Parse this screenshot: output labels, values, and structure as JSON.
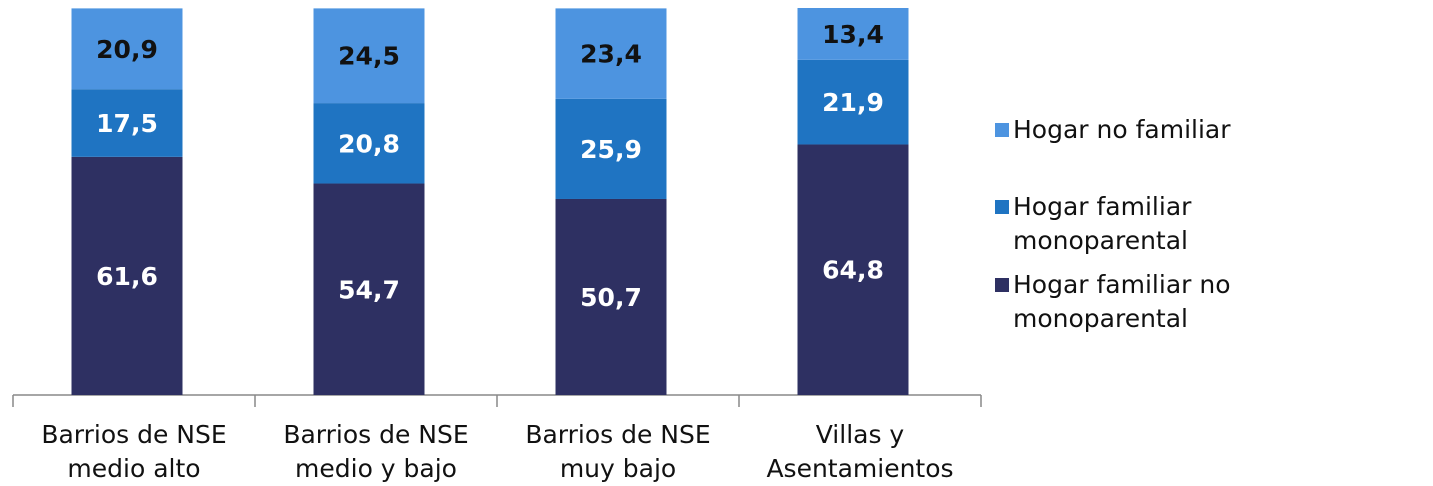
{
  "chart_data": {
    "type": "stacked_bar",
    "categories": [
      "Barrios de NSE medio alto",
      "Barrios de NSE medio y bajo",
      "Barrios de NSE muy bajo",
      "Villas y Asentamientos"
    ],
    "series": [
      {
        "name": "Hogar familiar no monoparental",
        "color": "#2e3062",
        "values": [
          61.6,
          54.7,
          50.7,
          64.8
        ],
        "value_labels": [
          "61,6",
          "54,7",
          "50,7",
          "64,8"
        ]
      },
      {
        "name": "Hogar familiar monoparental",
        "color": "#1f74c2",
        "values": [
          17.5,
          20.8,
          25.9,
          21.9
        ],
        "value_labels": [
          "17,5",
          "20,8",
          "25,9",
          "21,9"
        ]
      },
      {
        "name": "Hogar no familiar",
        "color": "#4d94e0",
        "values": [
          20.9,
          24.5,
          23.4,
          13.4
        ],
        "value_labels": [
          "20,9",
          "24,5",
          "23,4",
          "13,4"
        ]
      }
    ],
    "legend": "right"
  }
}
